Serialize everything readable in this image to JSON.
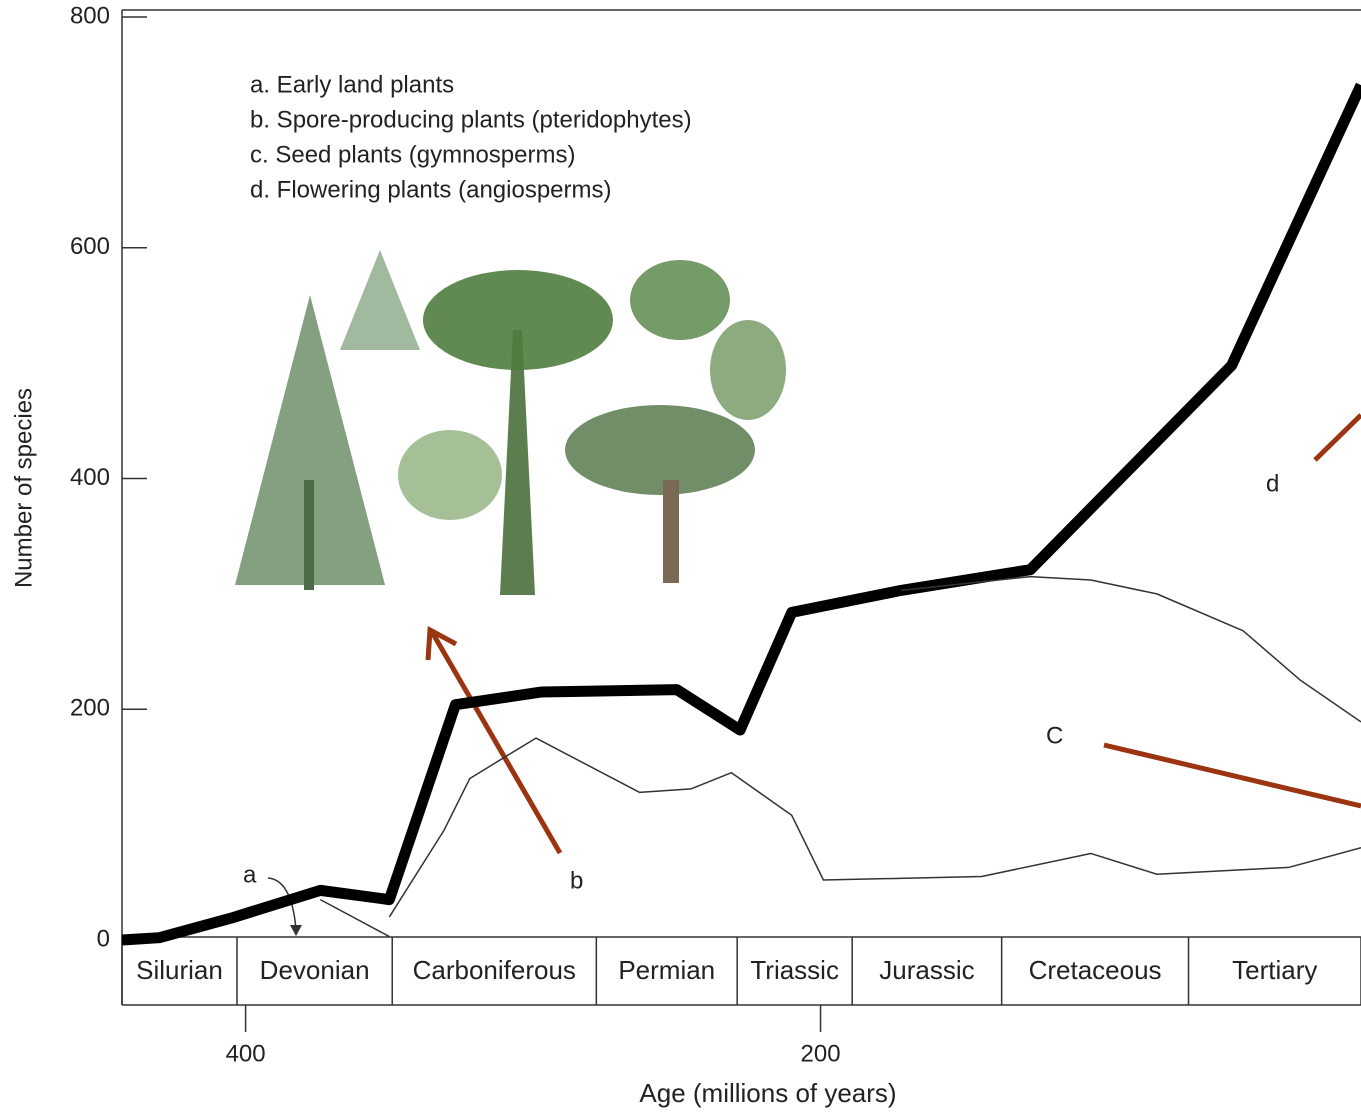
{
  "chart_data": {
    "type": "line",
    "x_label": "Age (millions of years)",
    "y_label": "Number of species",
    "xlim": [
      443,
      12
    ],
    "xticks": [
      400,
      200
    ],
    "ylim": [
      0,
      800
    ],
    "yticks": [
      0,
      200,
      400,
      600,
      800
    ],
    "legend": [
      "a. Early land plants",
      "b. Spore-producing plants (pteridophytes)",
      "c. Seed plants (gymnosperms)",
      "d. Flowering plants (angiosperms)"
    ],
    "annotations": [
      "a",
      "b",
      "C",
      "d"
    ],
    "periods": [
      "Silurian",
      "Devonian",
      "Carboniferous",
      "Permian",
      "Triassic",
      "Jurassic",
      "Cretaceous",
      "Tertiary"
    ],
    "period_bounds": [
      443,
      403,
      349,
      278,
      229,
      189,
      137,
      72,
      12
    ],
    "series": [
      {
        "color": "#000000",
        "width": 11,
        "x": [
          443,
          430,
          405,
          374,
          350,
          327,
          297,
          250,
          228,
          210,
          172,
          127,
          57,
          12
        ],
        "values": [
          0,
          2,
          19,
          43,
          35,
          204,
          215,
          217,
          182,
          284,
          303,
          321,
          498,
          741
        ]
      },
      {
        "color": "#333333",
        "width": 1.5,
        "x": [
          350,
          331,
          322,
          299,
          263,
          245,
          231,
          210,
          199,
          144,
          106,
          83,
          37,
          12
        ],
        "values": [
          20,
          95,
          140,
          175,
          128,
          131,
          145,
          108,
          52,
          55,
          75,
          57,
          63,
          80
        ]
      },
      {
        "color": "#333333",
        "width": 1.5,
        "x": [
          172,
          127,
          106,
          83,
          53,
          33,
          12
        ],
        "values": [
          303,
          315,
          312,
          300,
          268,
          225,
          189
        ]
      },
      {
        "color": "#333333",
        "width": 1.5,
        "x": [
          374,
          350
        ],
        "values": [
          35,
          3
        ]
      }
    ]
  }
}
